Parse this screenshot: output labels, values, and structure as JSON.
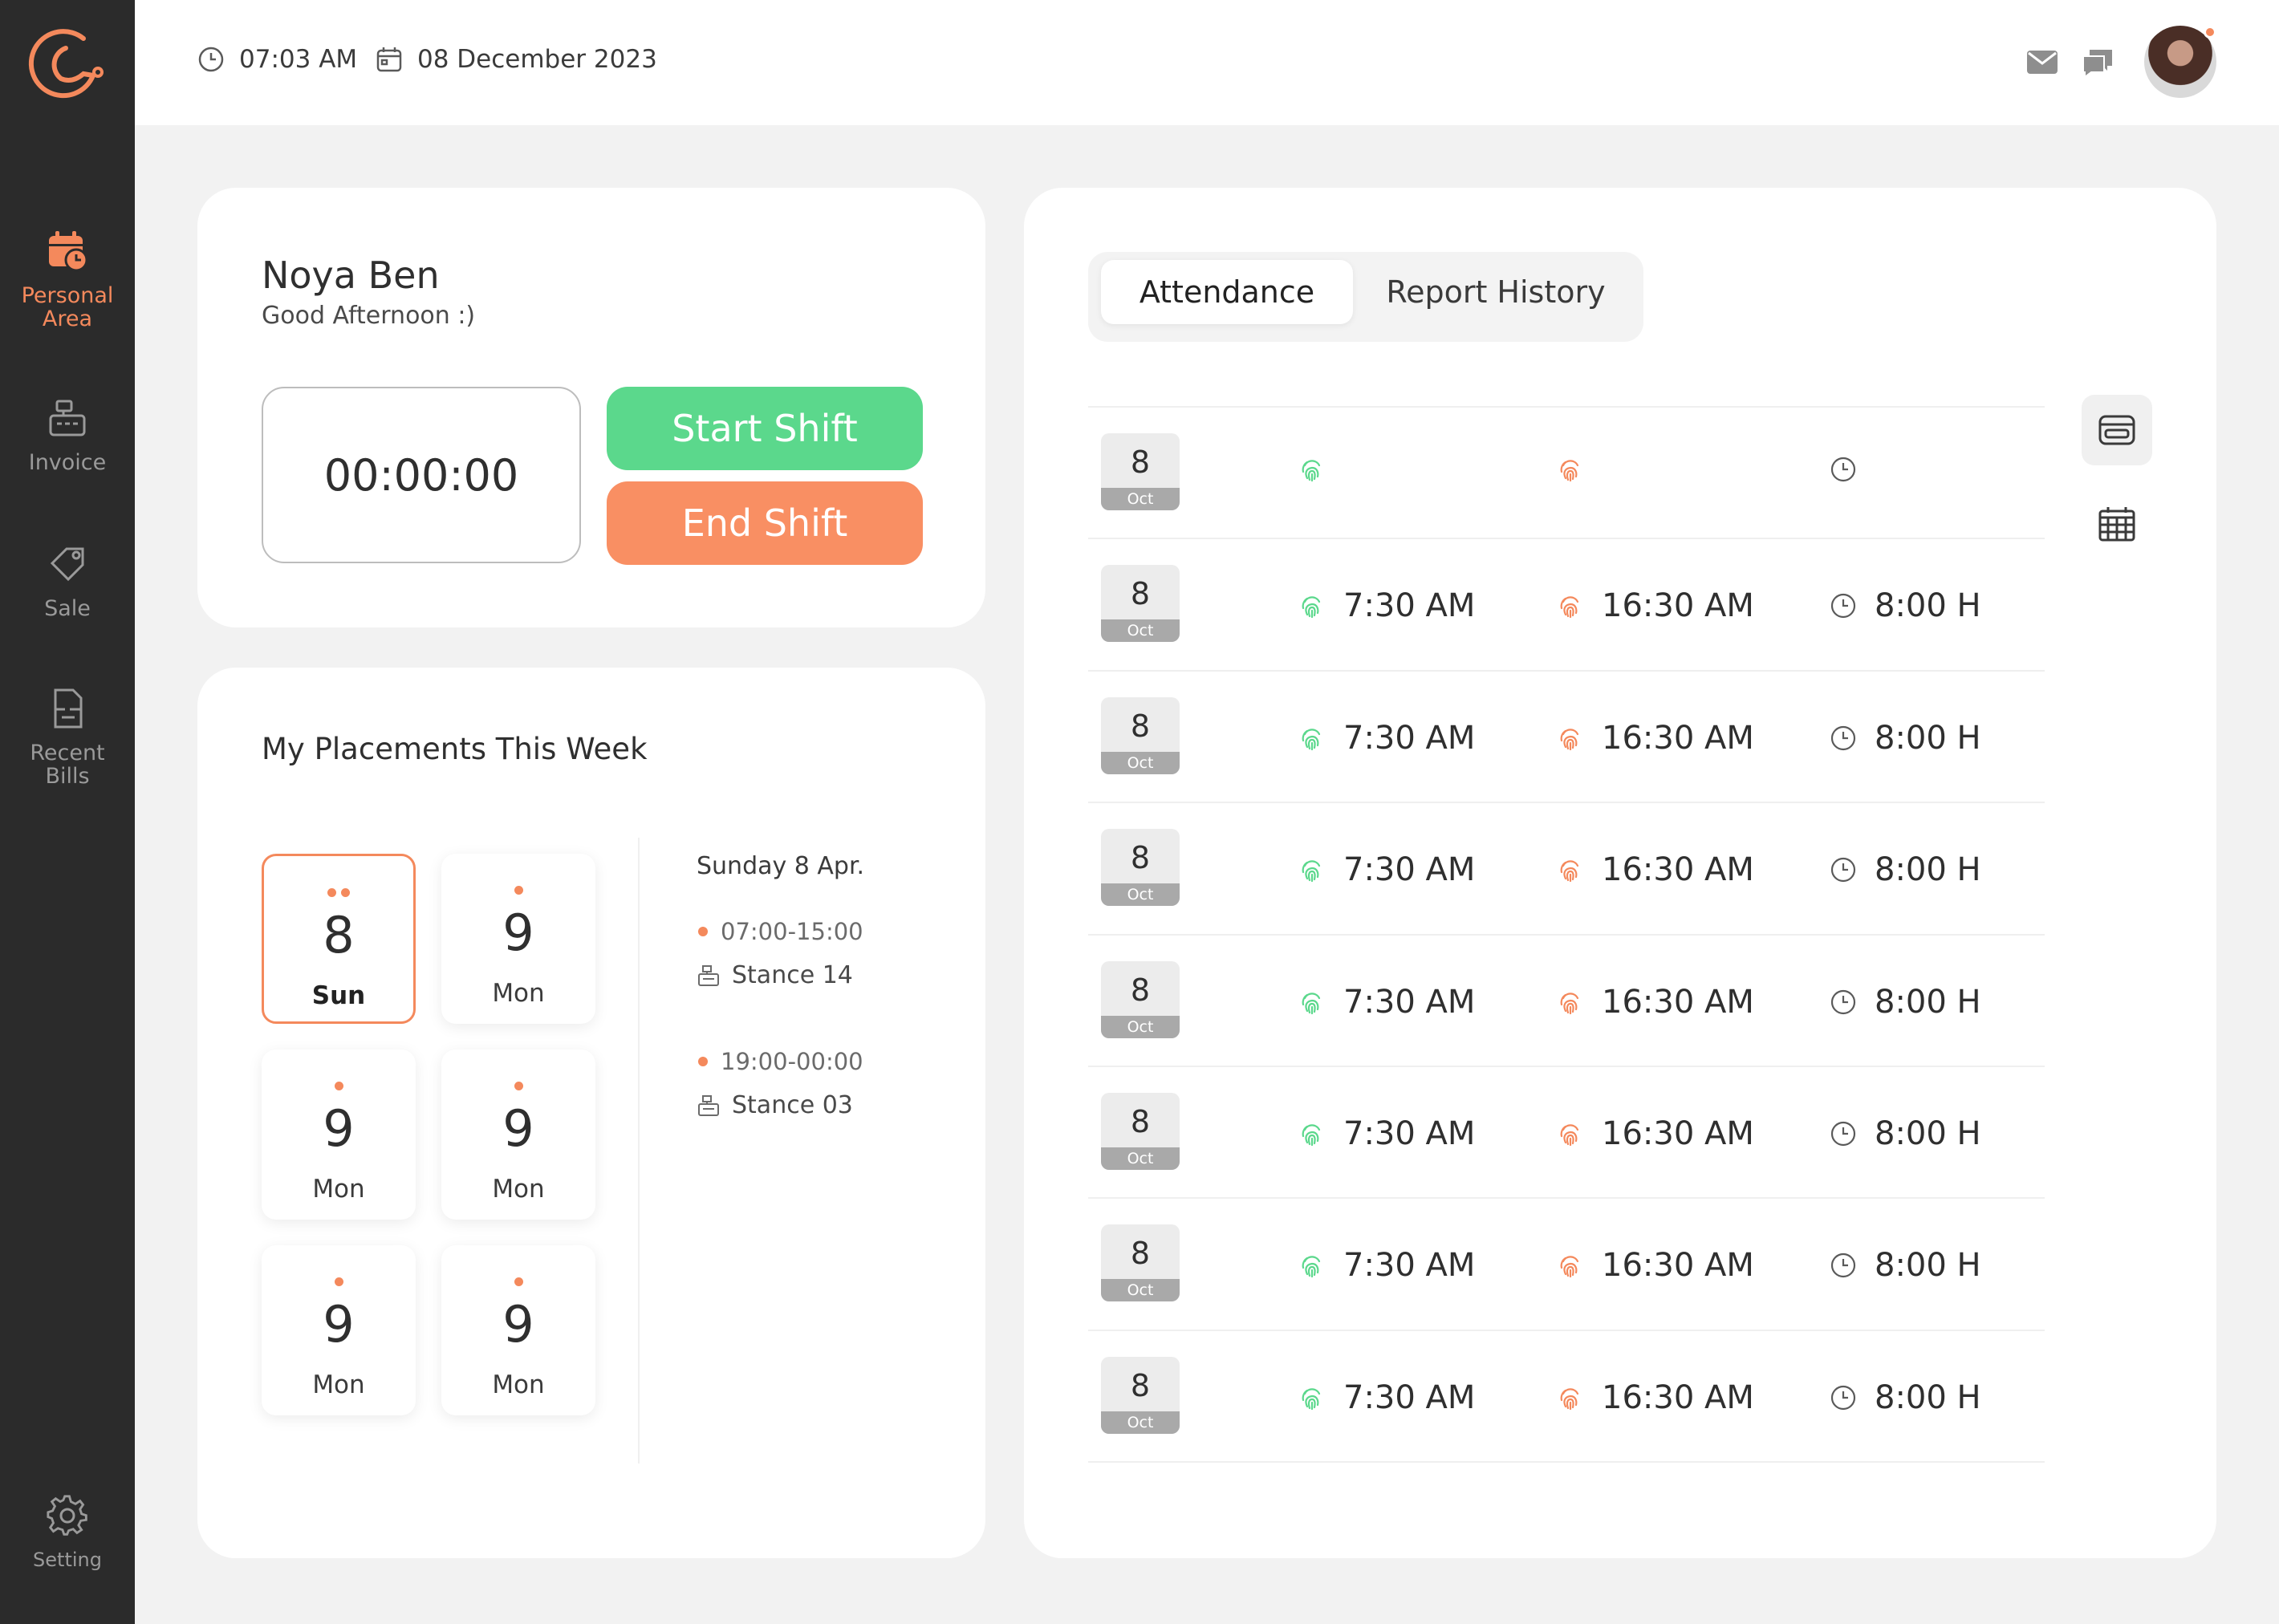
{
  "header": {
    "time": "07:03 AM",
    "date": "08 December 2023"
  },
  "sidebar": {
    "items": [
      {
        "label": "Personal\nArea",
        "icon": "calendar-clock-icon",
        "active": true
      },
      {
        "label": "Invoice",
        "icon": "cash-register-icon",
        "active": false
      },
      {
        "label": "Sale",
        "icon": "tag-icon",
        "active": false
      },
      {
        "label": "Recent\nBills",
        "icon": "bill-icon",
        "active": false
      }
    ],
    "setting": {
      "label": "Setting",
      "icon": "gear-icon"
    }
  },
  "profile": {
    "name": "Noya Ben",
    "greeting": "Good Afternoon :)",
    "timer": "00:00:00",
    "start_label": "Start Shift",
    "end_label": "End Shift"
  },
  "week": {
    "title": "My Placements This Week",
    "days": [
      {
        "num": "8",
        "name": "Sun",
        "dots": 2,
        "selected": true
      },
      {
        "num": "9",
        "name": "Mon",
        "dots": 1,
        "selected": false
      },
      {
        "num": "9",
        "name": "Mon",
        "dots": 1,
        "selected": false
      },
      {
        "num": "9",
        "name": "Mon",
        "dots": 1,
        "selected": false
      },
      {
        "num": "9",
        "name": "Mon",
        "dots": 1,
        "selected": false
      },
      {
        "num": "9",
        "name": "Mon",
        "dots": 1,
        "selected": false
      }
    ],
    "schedule": {
      "date": "Sunday 8 Apr.",
      "entries": [
        {
          "time": "07:00-15:00",
          "stance": "Stance 14"
        },
        {
          "time": "19:00-00:00",
          "stance": "Stance 03"
        }
      ]
    }
  },
  "attendance": {
    "tabs": [
      "Attendance",
      "Report History"
    ],
    "rows": [
      {
        "day": "8",
        "month": "Oct",
        "in": "",
        "out": "",
        "total": ""
      },
      {
        "day": "8",
        "month": "Oct",
        "in": "7:30 AM",
        "out": "16:30 AM",
        "total": "8:00 H"
      },
      {
        "day": "8",
        "month": "Oct",
        "in": "7:30 AM",
        "out": "16:30 AM",
        "total": "8:00 H"
      },
      {
        "day": "8",
        "month": "Oct",
        "in": "7:30 AM",
        "out": "16:30 AM",
        "total": "8:00 H"
      },
      {
        "day": "8",
        "month": "Oct",
        "in": "7:30 AM",
        "out": "16:30 AM",
        "total": "8:00 H"
      },
      {
        "day": "8",
        "month": "Oct",
        "in": "7:30 AM",
        "out": "16:30 AM",
        "total": "8:00 H"
      },
      {
        "day": "8",
        "month": "Oct",
        "in": "7:30 AM",
        "out": "16:30 AM",
        "total": "8:00 H"
      },
      {
        "day": "8",
        "month": "Oct",
        "in": "7:30 AM",
        "out": "16:30 AM",
        "total": "8:00 H"
      }
    ],
    "side_icons": [
      "card-view-icon",
      "calendar-grid-icon"
    ]
  },
  "colors": {
    "accent": "#f4895c",
    "green": "#5bd88c",
    "sidebar": "#2b2b2b"
  }
}
